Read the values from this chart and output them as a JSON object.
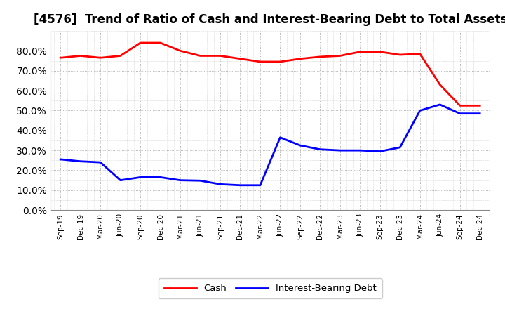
{
  "title": "[4576]  Trend of Ratio of Cash and Interest-Bearing Debt to Total Assets",
  "x_labels": [
    "Sep-19",
    "Dec-19",
    "Mar-20",
    "Jun-20",
    "Sep-20",
    "Dec-20",
    "Mar-21",
    "Jun-21",
    "Sep-21",
    "Dec-21",
    "Mar-22",
    "Jun-22",
    "Sep-22",
    "Dec-22",
    "Mar-23",
    "Jun-23",
    "Sep-23",
    "Dec-23",
    "Mar-24",
    "Jun-24",
    "Sep-24",
    "Dec-24"
  ],
  "cash": [
    0.765,
    0.775,
    0.765,
    0.775,
    0.84,
    0.84,
    0.8,
    0.775,
    0.775,
    0.76,
    0.745,
    0.745,
    0.76,
    0.77,
    0.775,
    0.795,
    0.795,
    0.78,
    0.785,
    0.63,
    0.525,
    0.525
  ],
  "ibd": [
    0.255,
    0.245,
    0.24,
    0.15,
    0.165,
    0.165,
    0.15,
    0.148,
    0.13,
    0.125,
    0.125,
    0.365,
    0.325,
    0.305,
    0.3,
    0.3,
    0.295,
    0.315,
    0.5,
    0.53,
    0.485,
    0.485
  ],
  "cash_color": "#ff0000",
  "ibd_color": "#0000ff",
  "background_color": "#ffffff",
  "grid_color": "#888888",
  "ylim": [
    0.0,
    0.9
  ],
  "yticks": [
    0.0,
    0.1,
    0.2,
    0.3,
    0.4,
    0.5,
    0.6,
    0.7,
    0.8
  ],
  "legend_cash": "Cash",
  "legend_ibd": "Interest-Bearing Debt",
  "line_width": 2.0,
  "title_fontsize": 12
}
